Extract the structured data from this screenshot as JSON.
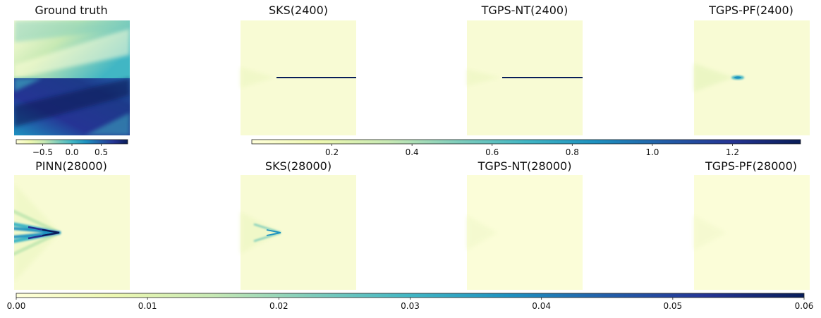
{
  "colormap": [
    "#ffffd9",
    "#edf8b1",
    "#c7e9b4",
    "#7fcdbb",
    "#41b6c4",
    "#1d91c0",
    "#225ea8",
    "#253494",
    "#081d58"
  ],
  "chart_data": [
    {
      "type": "heatmap",
      "title": "Ground truth",
      "field": "solution",
      "description_visible": "upper half: yellow at left-middle grading to teal at top-right; lower half: dark blue band along the lower-left diagonal, teal/yellow at bottom-right and top-left",
      "colorbar": {
        "ticks": [
          "−0.5",
          "0.0",
          "0.5"
        ],
        "range": [
          -0.95,
          0.95
        ]
      }
    },
    {
      "type": "heatmap",
      "title": "SKS(2400)",
      "field": "absolute error",
      "peak_row": 0.5,
      "peak_start": 0.3,
      "peak_end": 1.0,
      "peak_value": 1.3
    },
    {
      "type": "heatmap",
      "title": "TGPS-NT(2400)",
      "field": "absolute error",
      "peak_row": 0.5,
      "peak_start": 0.3,
      "peak_end": 1.0,
      "peak_value": 1.35
    },
    {
      "type": "heatmap",
      "title": "TGPS-PF(2400)",
      "field": "absolute error",
      "peak_row": 0.5,
      "peak_start": 0.3,
      "peak_end": 0.42,
      "peak_value": 0.8
    },
    {
      "type": "heatmap",
      "title": "PINN(28000)",
      "field": "absolute error",
      "peak_row": 0.5,
      "peak_start": 0.0,
      "peak_end": 0.4,
      "peak_value": 0.06
    },
    {
      "type": "heatmap",
      "title": "SKS(28000)",
      "field": "absolute error",
      "peak_row": 0.5,
      "peak_start": 0.2,
      "peak_end": 0.35,
      "peak_value": 0.045
    },
    {
      "type": "heatmap",
      "title": "TGPS-NT(28000)",
      "field": "absolute error",
      "peak_row": 0.5,
      "peak_start": 0.3,
      "peak_end": 0.4,
      "peak_value": 0.004
    },
    {
      "type": "heatmap",
      "title": "TGPS-PF(28000)",
      "field": "absolute error",
      "peak_row": 0.5,
      "peak_start": 0.3,
      "peak_end": 0.4,
      "peak_value": 0.003
    }
  ],
  "colorbars": {
    "ground_truth": {
      "ticks": [
        "−0.5",
        "0.0",
        "0.5"
      ],
      "values": [
        -0.5,
        0.0,
        0.5
      ],
      "range": [
        -0.95,
        0.95
      ]
    },
    "error_2400": {
      "ticks": [
        "0.2",
        "0.4",
        "0.6",
        "0.8",
        "1.0",
        "1.2"
      ],
      "values": [
        0.2,
        0.4,
        0.6,
        0.8,
        1.0,
        1.2
      ],
      "range": [
        0.0,
        1.37
      ]
    },
    "error_28000": {
      "ticks": [
        "0.00",
        "0.01",
        "0.02",
        "0.03",
        "0.04",
        "0.05",
        "0.06"
      ],
      "values": [
        0.0,
        0.01,
        0.02,
        0.03,
        0.04,
        0.05,
        0.06
      ],
      "range": [
        0.0,
        0.06
      ]
    }
  }
}
